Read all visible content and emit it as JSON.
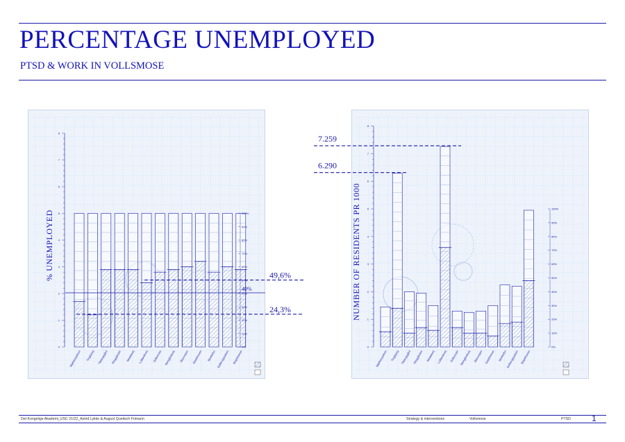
{
  "header": {
    "title": "PERCENTAGE UNEMPLOYED",
    "subtitle": "PTSD & WORK IN VOLLSMOSE"
  },
  "footer": {
    "left": "Det Kongelige Akademi_USC 21/22_Astrid Lykke & August Queitsch Frimann",
    "section": "Strategy & interventions",
    "place": "Vollsmose",
    "topic": "PTSD",
    "page": "1"
  },
  "colors": {
    "accent": "#1a1aa8",
    "panel": "#eef3fb",
    "bar": "#7a8bc4"
  },
  "chart_data": [
    {
      "type": "bar",
      "ylabel": "% UNEMPLOYED",
      "ylim": [
        0,
        8
      ],
      "yticks": [
        0,
        1,
        2,
        3,
        4,
        5,
        6,
        7,
        8
      ],
      "categories": [
        "Mjølnerparken",
        "Tingbjerg",
        "Tåstrupgård",
        "Ringgården",
        "Motalavej",
        "Lollandsvej",
        "Vollsmose",
        "Stengårdsvej",
        "Skovvejen",
        "Gadehaven",
        "Munkebo",
        "Gellerupparken",
        "Bispehaven"
      ],
      "values": [
        1.7,
        1.2,
        2.9,
        2.9,
        2.9,
        2.4,
        2.8,
        2.9,
        3.0,
        3.2,
        2.8,
        3.0,
        2.9
      ],
      "max_values": [
        5,
        5,
        5,
        5,
        5,
        5,
        5,
        5,
        5,
        5,
        5,
        5,
        5
      ],
      "percent_ticks": [
        "100%",
        "90%",
        "80%",
        "70%",
        "60%",
        "50%",
        "40%",
        "30%",
        "20%",
        "10%",
        "0%"
      ],
      "reference_lines": [
        {
          "label": "49,6%",
          "value": 2.48
        },
        {
          "label": "40%",
          "value": 2.0
        },
        {
          "label": "24,3%",
          "value": 1.2
        }
      ]
    },
    {
      "type": "bar",
      "ylabel": "NUMBER OF RESIDENTS PR 1000",
      "ylim": [
        0,
        8
      ],
      "yticks": [
        0,
        1,
        2,
        3,
        4,
        5,
        6,
        7,
        8
      ],
      "categories": [
        "Mjølnerparken",
        "Tingbjerg",
        "Tåstrupgård",
        "Ringgården",
        "Motalavej",
        "Lollandsvej",
        "Vollsmose",
        "Stengårdsvej",
        "Skovvejen",
        "Gadehaven",
        "Munkebo",
        "Gellerupparken",
        "Bispehaven"
      ],
      "values": [
        0.55,
        1.4,
        0.5,
        0.7,
        0.6,
        3.6,
        0.7,
        0.5,
        0.5,
        0.4,
        0.85,
        0.9,
        2.4
      ],
      "max_values": [
        1.45,
        6.29,
        2.0,
        1.95,
        1.5,
        7.259,
        1.3,
        1.25,
        1.3,
        1.5,
        2.25,
        2.2,
        4.95
      ],
      "percent_ticks": [
        "100%",
        "90%",
        "80%",
        "70%",
        "60%",
        "50%",
        "40%",
        "30%",
        "20%",
        "10%",
        "0%"
      ],
      "reference_lines": [
        {
          "label": "7.259",
          "value": 7.259
        },
        {
          "label": "6.290",
          "value": 6.29
        }
      ]
    }
  ]
}
